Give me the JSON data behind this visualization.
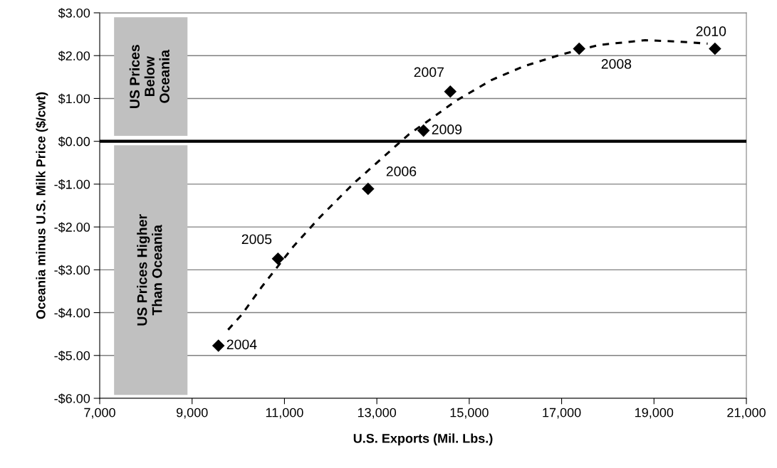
{
  "chart_data": {
    "type": "scatter",
    "xlabel": "U.S. Exports (Mil. Lbs.)",
    "ylabel": "Oceania minus U.S. Milk Price ($/cwt)",
    "series": [
      {
        "color": "#000000",
        "marker": "diamond",
        "x": [
          9570,
          10860,
          12810,
          14590,
          17380,
          14010,
          20320
        ],
        "values": [
          -4.77,
          -2.74,
          -1.11,
          1.16,
          2.16,
          0.25,
          2.16
        ]
      },
      {
        "type": "line",
        "color": "#000000",
        "marker": "none",
        "line_style": "dashed",
        "x": [
          9780,
          10080,
          10500,
          11190,
          11760,
          12500,
          13690,
          14010,
          14720,
          15480,
          16180,
          17000,
          17820,
          18810,
          19510,
          20160
        ],
        "values": [
          -4.4,
          -4.04,
          -3.41,
          -2.46,
          -1.78,
          -0.98,
          0.16,
          0.4,
          0.95,
          1.43,
          1.75,
          2.03,
          2.25,
          2.36,
          2.33,
          2.28
        ]
      }
    ],
    "xlim": [
      7000,
      21000
    ],
    "xticks": [
      {
        "value": 7000,
        "label": "7,000"
      },
      {
        "value": 9000,
        "label": "9,000"
      },
      {
        "value": 11000,
        "label": "11,000"
      },
      {
        "value": 13000,
        "label": "13,000"
      },
      {
        "value": 15000,
        "label": "15,000"
      },
      {
        "value": 17000,
        "label": "17,000"
      },
      {
        "value": 19000,
        "label": "19,000"
      },
      {
        "value": 21000,
        "label": "21,000"
      }
    ],
    "ylim": [
      -6,
      3
    ],
    "yticks": [
      {
        "value": -6,
        "label": "-$6.00"
      },
      {
        "value": -5,
        "label": "-$5.00"
      },
      {
        "value": -4,
        "label": "-$4.00"
      },
      {
        "value": -3,
        "label": "-$3.00"
      },
      {
        "value": -2,
        "label": "-$2.00"
      },
      {
        "value": -1,
        "label": "-$1.00"
      },
      {
        "value": 0,
        "label": "$0.00"
      },
      {
        "value": 1,
        "label": "$1.00"
      },
      {
        "value": 2,
        "label": "$2.00"
      },
      {
        "value": 3,
        "label": "$3.00"
      }
    ],
    "grid": "y",
    "ref_lines": [
      {
        "axis": "y",
        "value": 0,
        "color": "#000000"
      }
    ],
    "annotations": [
      {
        "text": "2004",
        "x": 9570,
        "y": -4.77
      },
      {
        "text": "2005",
        "x": 10860,
        "y": -2.74
      },
      {
        "text": "2006",
        "x": 12810,
        "y": -1.11
      },
      {
        "text": "2007",
        "x": 14590,
        "y": 1.16
      },
      {
        "text": "2008",
        "x": 17380,
        "y": 2.16
      },
      {
        "text": "2009",
        "x": 14010,
        "y": 0.25
      },
      {
        "text": "2010",
        "x": 20320,
        "y": 2.16
      },
      "US Prices\nBelow\nOceania",
      "US Prices Higher\nThan Oceania"
    ]
  }
}
